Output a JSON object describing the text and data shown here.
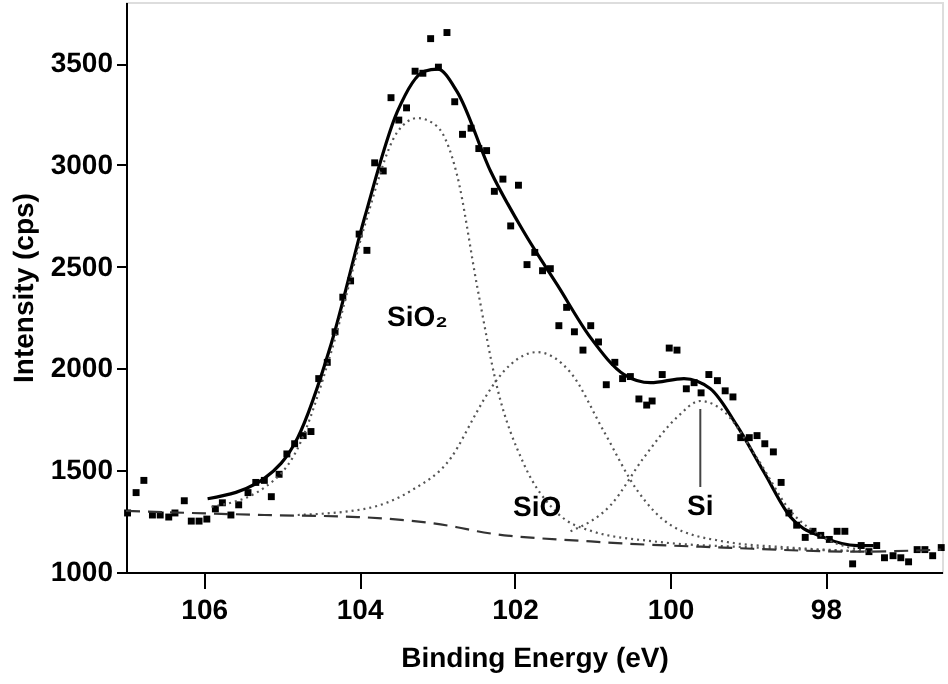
{
  "chart_data": {
    "type": "line",
    "xlabel": "Binding Energy (eV)",
    "ylabel": "Intensity (cps)",
    "xlim": [
      107,
      96.5
    ],
    "xticks": [
      106,
      104,
      102,
      100,
      98
    ],
    "ylim": [
      1000,
      3800
    ],
    "yticks": [
      1000,
      1500,
      2000,
      2500,
      3000,
      3500
    ],
    "grid": false,
    "annotations": [
      "SiO₂",
      "SiO",
      {
        "text": "Si",
        "x": 99.61,
        "y": 1840
      }
    ],
    "series": [
      {
        "type": "scatter",
        "marker": "square",
        "color": "#000000",
        "x": [
          106.98,
          106.87,
          106.77,
          106.66,
          106.56,
          106.45,
          106.37,
          106.25,
          106.16,
          106.06,
          105.96,
          105.85,
          105.76,
          105.65,
          105.55,
          105.43,
          105.33,
          105.22,
          105.13,
          105.03,
          104.93,
          104.83,
          104.72,
          104.62,
          104.52,
          104.41,
          104.31,
          104.21,
          104.11,
          104.0,
          103.9,
          103.8,
          103.69,
          103.59,
          103.49,
          103.39,
          103.28,
          103.18,
          103.08,
          102.98,
          102.87,
          102.77,
          102.67,
          102.56,
          102.46,
          102.36,
          102.26,
          102.15,
          102.05,
          101.95,
          101.84,
          101.74,
          101.64,
          101.54,
          101.43,
          101.33,
          101.23,
          101.12,
          101.02,
          100.92,
          100.82,
          100.71,
          100.61,
          100.51,
          100.4,
          100.3,
          100.23,
          100.1,
          100.01,
          99.91,
          99.79,
          99.69,
          99.6,
          99.5,
          99.39,
          99.29,
          99.19,
          99.09,
          98.98,
          98.88,
          98.78,
          98.67,
          98.57,
          98.47,
          98.37,
          98.26,
          98.16,
          98.06,
          97.95,
          97.85,
          97.75,
          97.65,
          97.54,
          97.44,
          97.34,
          97.24,
          97.13,
          97.03,
          96.93,
          96.82,
          96.72,
          96.62,
          96.51
        ],
        "values": [
          1290,
          1390,
          1450,
          1280,
          1280,
          1270,
          1290,
          1350,
          1250,
          1250,
          1260,
          1310,
          1340,
          1280,
          1330,
          1390,
          1440,
          1450,
          1370,
          1480,
          1580,
          1630,
          1670,
          1690,
          1950,
          2030,
          2180,
          2350,
          2430,
          2660,
          2580,
          3010,
          2970,
          3330,
          3220,
          3280,
          3460,
          3450,
          3620,
          3480,
          3650,
          3310,
          3150,
          3180,
          3080,
          3070,
          2870,
          2930,
          2700,
          2900,
          2510,
          2570,
          2480,
          2490,
          2210,
          2300,
          2180,
          2090,
          2210,
          2130,
          1920,
          2030,
          1950,
          1960,
          1850,
          1820,
          1840,
          1970,
          2100,
          2090,
          1900,
          1930,
          1880,
          1970,
          1940,
          1890,
          1860,
          1660,
          1660,
          1670,
          1630,
          1590,
          1440,
          1290,
          1230,
          1170,
          1200,
          1180,
          1160,
          1200,
          1200,
          1040,
          1130,
          1100,
          1130,
          1070,
          1080,
          1070,
          1050,
          1110,
          1110,
          1080,
          1120
        ]
      },
      {
        "marker": "none",
        "line_style": "solid",
        "color": "#000000",
        "x": [
          105.95,
          105.22,
          104.79,
          104.36,
          103.93,
          103.51,
          103.16,
          102.99,
          102.74,
          102.31,
          101.88,
          101.45,
          101.02,
          100.59,
          100.25,
          99.82,
          99.48,
          99.14,
          98.79,
          98.45,
          98.02,
          97.59,
          97.38
        ],
        "values": [
          1360,
          1460,
          1660,
          2120,
          2740,
          3260,
          3460,
          3470,
          3360,
          2970,
          2670,
          2410,
          2150,
          1970,
          1930,
          1950,
          1900,
          1720,
          1490,
          1270,
          1170,
          1130,
          1130
        ]
      },
      {
        "marker": "none",
        "line_style": "dotted",
        "color": "#555555",
        "x": [
          105.9,
          105.2,
          104.8,
          104.36,
          103.93,
          103.51,
          103.25,
          103.0,
          102.74,
          102.48,
          102.22,
          101.88,
          101.45,
          101.0,
          100.2,
          98.9,
          97.4
        ],
        "values": [
          1320,
          1420,
          1600,
          2080,
          2700,
          3160,
          3230,
          3190,
          2950,
          2400,
          1900,
          1530,
          1290,
          1200,
          1150,
          1120,
          1100
        ]
      },
      {
        "marker": "none",
        "line_style": "dotted",
        "color": "#555555",
        "x": [
          104.79,
          103.93,
          103.33,
          102.82,
          102.48,
          102.39,
          102.05,
          101.71,
          101.28,
          100.85,
          100.42,
          99.99,
          99.31,
          98.45,
          97.42
        ],
        "values": [
          1280,
          1310,
          1400,
          1560,
          1790,
          1850,
          2020,
          2080,
          1980,
          1690,
          1400,
          1230,
          1150,
          1120,
          1100
        ]
      },
      {
        "marker": "none",
        "line_style": "dotted",
        "color": "#555555",
        "x": [
          101.28,
          100.76,
          100.34,
          99.91,
          99.61,
          99.31,
          98.88,
          98.45,
          98.02,
          97.42
        ],
        "values": [
          1200,
          1330,
          1560,
          1760,
          1840,
          1790,
          1560,
          1300,
          1170,
          1100
        ]
      },
      {
        "marker": "none",
        "line_style": "dashed",
        "color": "#333333",
        "x": [
          107.0,
          105.22,
          104.02,
          102.74,
          102.48,
          101.02,
          99.31,
          97.59,
          96.51
        ],
        "values": [
          1300,
          1280,
          1270,
          1220,
          1200,
          1150,
          1120,
          1100,
          1110
        ]
      }
    ]
  }
}
